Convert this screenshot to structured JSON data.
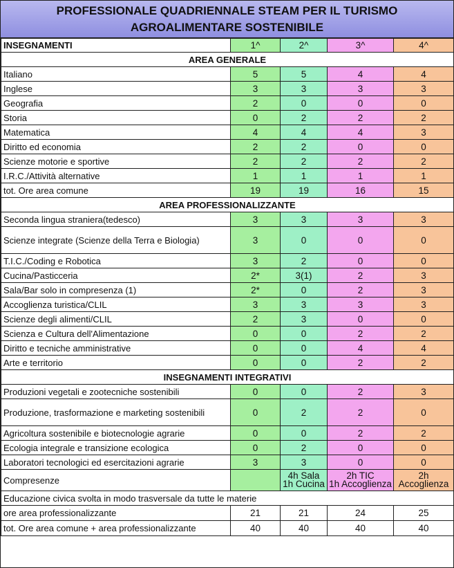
{
  "title": {
    "line1": "PROFESSIONALE QUADRIENNALE STEAM PER IL TURISMO",
    "line2": "AGROALIMENTARE SOSTENIBILE"
  },
  "header": {
    "label": "INSEGNAMENTI",
    "years": [
      "1^",
      "2^",
      "3^",
      "4^"
    ]
  },
  "colors": {
    "title_bg": "#9a9ae4",
    "year1": "#a6ef9f",
    "year2": "#9ef0c6",
    "year3": "#f3a6ee",
    "year4": "#f8c49a"
  },
  "sections": [
    {
      "title": "AREA GENERALE",
      "rows": [
        {
          "name": "Italiano",
          "values": [
            "5",
            "5",
            "4",
            "4"
          ]
        },
        {
          "name": "Inglese",
          "values": [
            "3",
            "3",
            "3",
            "3"
          ]
        },
        {
          "name": "Geografia",
          "values": [
            "2",
            "0",
            "0",
            "0"
          ]
        },
        {
          "name": "Storia",
          "values": [
            "0",
            "2",
            "2",
            "2"
          ]
        },
        {
          "name": "Matematica",
          "values": [
            "4",
            "4",
            "4",
            "3"
          ]
        },
        {
          "name": "Diritto ed economia",
          "values": [
            "2",
            "2",
            "0",
            "0"
          ]
        },
        {
          "name": "Scienze motorie e sportive",
          "values": [
            "2",
            "2",
            "2",
            "2"
          ]
        },
        {
          "name": "I.R.C./Attività alternative",
          "values": [
            "1",
            "1",
            "1",
            "1"
          ]
        },
        {
          "name": "tot. Ore area comune",
          "values": [
            "19",
            "19",
            "16",
            "15"
          ]
        }
      ]
    },
    {
      "title": "AREA PROFESSIONALIZZANTE",
      "rows": [
        {
          "name": "Seconda lingua straniera(tedesco)",
          "values": [
            "3",
            "3",
            "3",
            "3"
          ]
        },
        {
          "name": "Scienze integrate (Scienze della Terra e Biologia)",
          "values": [
            "3",
            "0",
            "0",
            "0"
          ]
        },
        {
          "name": "T.I.C./Coding e Robotica",
          "values": [
            "3",
            "2",
            "0",
            "0"
          ]
        },
        {
          "name": "Cucina/Pasticceria",
          "values": [
            "2*",
            "3(1)",
            "2",
            "3"
          ]
        },
        {
          "name": "Sala/Bar solo in compresenza (1)",
          "values": [
            "2*",
            "0",
            "2",
            "3"
          ]
        },
        {
          "name": "Accoglienza turistica/CLIL",
          "values": [
            "3",
            "3",
            "3",
            "3"
          ]
        },
        {
          "name": "Scienze degli alimenti/CLIL",
          "values": [
            "2",
            "3",
            "0",
            "0"
          ]
        },
        {
          "name": "Scienza e Cultura dell'Alimentazione",
          "values": [
            "0",
            "0",
            "2",
            "2"
          ]
        },
        {
          "name": "Diritto e tecniche amministrative",
          "values": [
            "0",
            "0",
            "4",
            "4"
          ]
        },
        {
          "name": "Arte e territorio",
          "values": [
            "0",
            "0",
            "2",
            "2"
          ]
        }
      ]
    },
    {
      "title": "INSEGNAMENTI INTEGRATIVI",
      "rows": [
        {
          "name": "Produzioni vegetali e zootecniche sostenibili",
          "values": [
            "0",
            "0",
            "2",
            "3"
          ]
        },
        {
          "name": "Produzione, trasformazione e marketing sostenibili",
          "values": [
            "0",
            "2",
            "2",
            "0"
          ]
        },
        {
          "name": "Agricoltura sostenibile e biotecnologie agrarie",
          "values": [
            "0",
            "0",
            "2",
            "2"
          ]
        },
        {
          "name": "Ecologia integrale e transizione ecologica",
          "values": [
            "0",
            "2",
            "0",
            "0"
          ]
        },
        {
          "name": "Laboratori tecnologici ed esercitazioni agrarie",
          "values": [
            "3",
            "3",
            "0",
            "0"
          ]
        }
      ]
    }
  ],
  "compresenze": {
    "name": "Compresenze",
    "values": [
      "",
      "4h Sala\n1h Cucina",
      "2h TIC\n1h  Accoglienza",
      "2h Accoglienza"
    ]
  },
  "civica": "Educazione civica svolta in modo trasversale da tutte le materie",
  "totals": [
    {
      "name": "ore area professionalizzante",
      "values": [
        "21",
        "21",
        "24",
        "25"
      ]
    },
    {
      "name": "tot. Ore area comune + area professionalizzante",
      "values": [
        "40",
        "40",
        "40",
        "40"
      ]
    }
  ]
}
